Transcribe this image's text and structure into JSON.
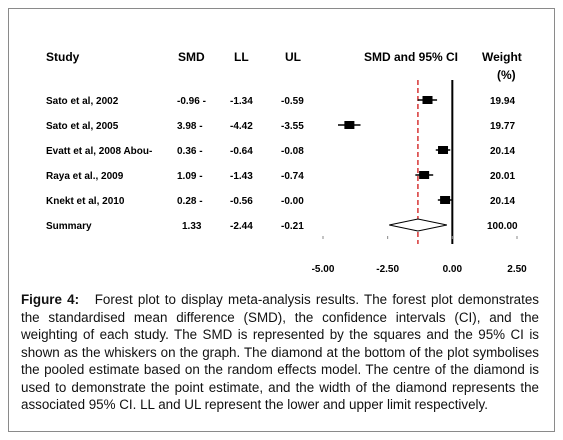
{
  "headers": {
    "study": "Study",
    "smd": "SMD",
    "ll": "LL",
    "ul": "UL",
    "ci": "SMD and 95% CI",
    "weight": "Weight",
    "weight_unit": "(%)"
  },
  "rows": [
    {
      "study": "Sato et al, 2002",
      "smd": "-0.96 -",
      "ll": "-1.34",
      "ul": "-0.59",
      "weight": "19.94"
    },
    {
      "study": "Sato et al, 2005",
      "smd": "3.98 -",
      "ll": "-4.42",
      "ul": "-3.55",
      "weight": "19.77"
    },
    {
      "study": "Evatt et al, 2008  Abou-",
      "smd": "0.36 -",
      "ll": "-0.64",
      "ul": "-0.08",
      "weight": "20.14"
    },
    {
      "study": "Raya et al., 2009",
      "smd": "1.09 -",
      "ll": "-1.43",
      "ul": "-0.74",
      "weight": "20.01"
    },
    {
      "study": "Knekt et al, 2010",
      "smd": "0.28 -",
      "ll": "-0.56",
      "ul": "-0.00",
      "weight": "20.14"
    },
    {
      "study": "Summary",
      "smd": "1.33",
      "ll": "-2.44",
      "ul": "-0.21",
      "weight": "100.00"
    }
  ],
  "caption": {
    "label": "Figure 4:",
    "text": "Forest plot to display meta-analysis results. The forest plot demonstrates the standardised mean difference (SMD), the confidence intervals (CI), and the weighting of each study. The SMD is represented by the squares and the 95% CI is shown as the whiskers on the graph. The diamond at the bottom of the plot symbolises the pooled estimate based on the random effects model. The centre of the diamond is used to demonstrate the point estimate, and the width of the diamond represents the associated 95% CI. LL and UL represent the lower and upper limit respectively."
  },
  "colors": {
    "marker": "#000000",
    "pooled_line": "#cc0000",
    "frame": "#8a8a8a"
  },
  "chart_data": {
    "type": "forest",
    "x_ticks": [
      -5.0,
      -2.5,
      0.0,
      2.5
    ],
    "x_tick_labels": [
      "-5.00",
      "-2.50",
      "0.00",
      "2.50"
    ],
    "xlim": [
      -5.0,
      2.5
    ],
    "reference_line": 0.0,
    "pooled_line": -1.33,
    "studies": [
      {
        "name": "Sato et al, 2002",
        "smd": -0.96,
        "ll": -1.34,
        "ul": -0.59,
        "weight": 19.94
      },
      {
        "name": "Sato et al, 2005",
        "smd": -3.98,
        "ll": -4.42,
        "ul": -3.55,
        "weight": 19.77
      },
      {
        "name": "Evatt et al, 2008  Abou-",
        "smd": -0.36,
        "ll": -0.64,
        "ul": -0.08,
        "weight": 20.14
      },
      {
        "name": "Raya et al., 2009",
        "smd": -1.09,
        "ll": -1.43,
        "ul": -0.74,
        "weight": 20.01
      },
      {
        "name": "Knekt et al, 2010",
        "smd": -0.28,
        "ll": -0.56,
        "ul": -0.0,
        "weight": 20.14
      }
    ],
    "summary": {
      "name": "Summary",
      "smd": -1.33,
      "ll": -2.44,
      "ul": -0.21,
      "weight": 100.0
    }
  }
}
